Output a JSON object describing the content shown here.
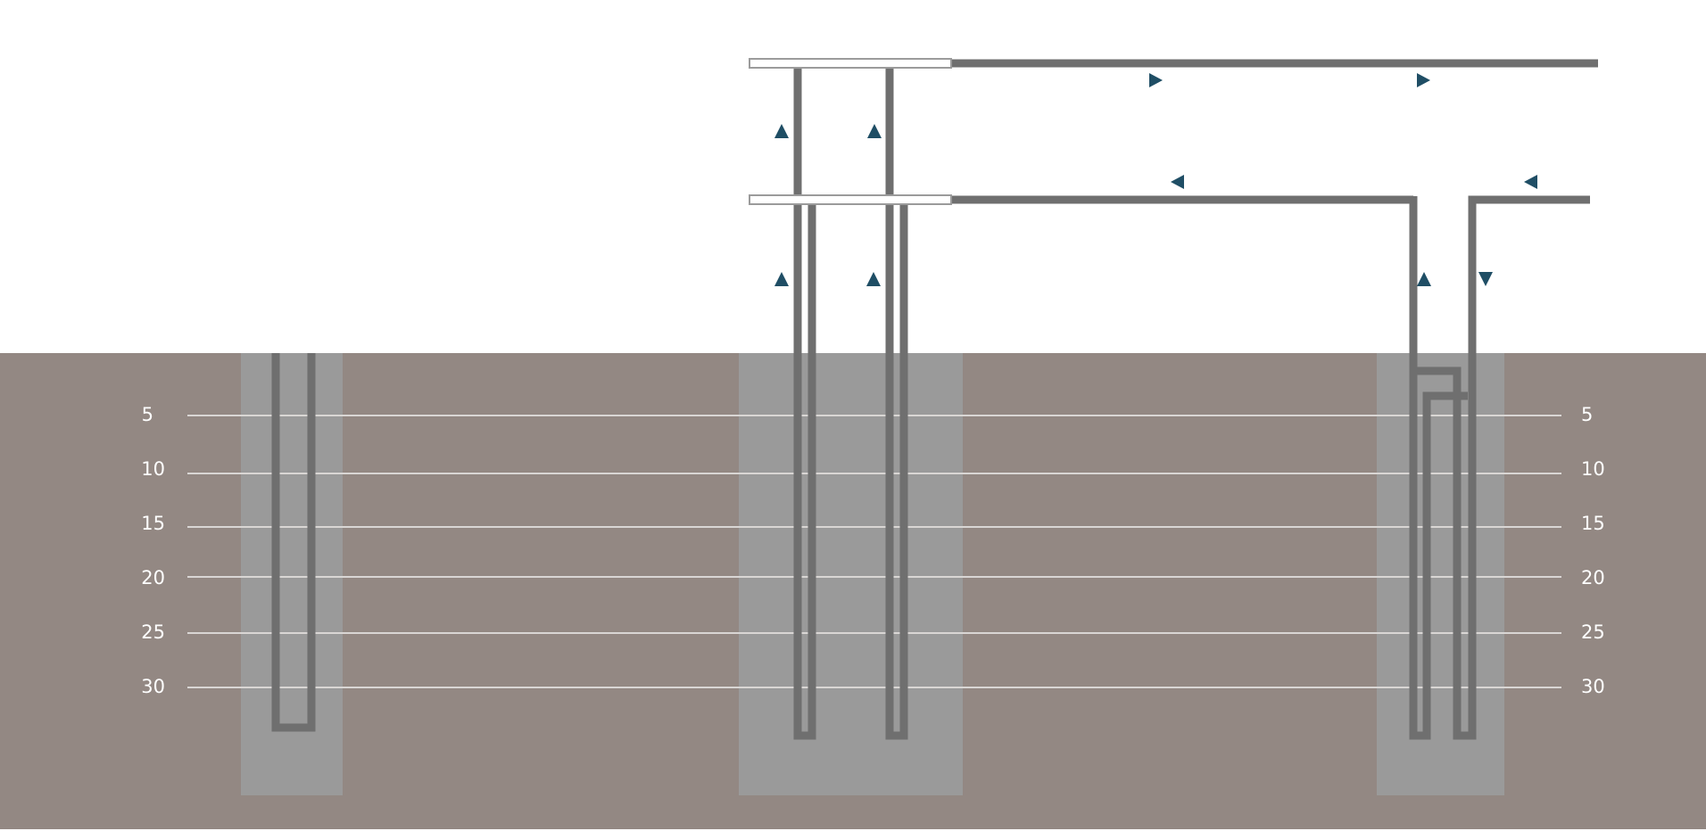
{
  "colors": {
    "background": "#ffffff",
    "ground": "#938883",
    "borehole": "#9a9a9a",
    "pipe": "#6f6f6f",
    "depth_line": "#d9d6d4",
    "depth_text": "#ffffff",
    "flow_arrow": "#1f4e65",
    "manifold_fill": "#ffffff",
    "manifold_border": "#9b9b9b"
  },
  "depth_scale": {
    "unit": "",
    "left_labels": [
      "5",
      "10",
      "15",
      "20",
      "25",
      "30"
    ],
    "right_labels": [
      "5",
      "10",
      "15",
      "20",
      "25",
      "30"
    ]
  },
  "boreholes": [
    {
      "name": "borehole-left",
      "loop": "single-u"
    },
    {
      "name": "borehole-middle",
      "loop": "two-u-loops"
    },
    {
      "name": "borehole-right",
      "loop": "two-u-loops"
    }
  ],
  "flow_arrows": [
    {
      "name": "supply-flow-arrow-1",
      "direction": "right"
    },
    {
      "name": "supply-flow-arrow-2",
      "direction": "right"
    },
    {
      "name": "return-flow-arrow-1",
      "direction": "left"
    },
    {
      "name": "return-flow-arrow-2",
      "direction": "left"
    },
    {
      "name": "riser-upper-arrow-1",
      "direction": "up"
    },
    {
      "name": "riser-upper-arrow-2",
      "direction": "up"
    },
    {
      "name": "riser-lower-arrow-1",
      "direction": "up"
    },
    {
      "name": "riser-lower-arrow-2",
      "direction": "up"
    },
    {
      "name": "right-loop-up-arrow",
      "direction": "up"
    },
    {
      "name": "right-loop-down-arrow",
      "direction": "down"
    }
  ]
}
